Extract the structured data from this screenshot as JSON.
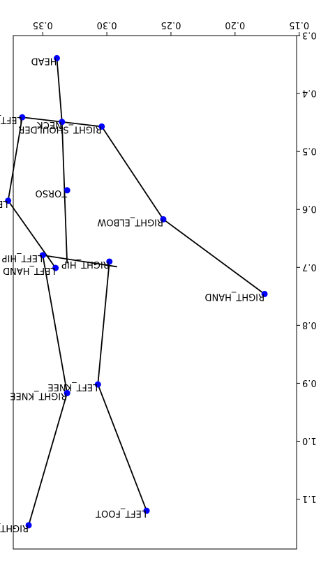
{
  "chart_data": {
    "type": "scatter",
    "title": "",
    "xlabel": "",
    "ylabel": "",
    "x_axis": {
      "range": [
        0.373,
        0.152
      ],
      "inverted": true,
      "ticks": [
        0.35,
        0.3,
        0.25,
        0.2,
        0.15
      ],
      "tick_labels": [
        "0.35",
        "0.30",
        "0.25",
        "0.20",
        "0.15"
      ],
      "position": "top"
    },
    "y_axis": {
      "range": [
        0.3,
        1.186
      ],
      "inverted": true,
      "ticks": [
        0.3,
        0.4,
        0.5,
        0.6,
        0.7,
        0.8,
        0.9,
        1.0,
        1.1
      ],
      "tick_labels": [
        "0.3",
        "0.4",
        "0.5",
        "0.6",
        "0.7",
        "0.8",
        "0.9",
        "1.0",
        "1.1"
      ],
      "position": "right"
    },
    "grid": false,
    "marker_color": "#0000ff",
    "line_color": "#000000",
    "text_orientation": "rotated 180 degrees",
    "points": [
      {
        "name": "HEAD",
        "x": 0.339,
        "y": 0.339
      },
      {
        "name": "NECK",
        "x": 0.335,
        "y": 0.449
      },
      {
        "name": "TORSO",
        "x": 0.331,
        "y": 0.567
      },
      {
        "name": "LEFT_SHOULDER",
        "x": 0.366,
        "y": 0.441
      },
      {
        "name": "RIGHT_SHOULDER",
        "x": 0.304,
        "y": 0.457
      },
      {
        "name": "LEFT_ELBOW",
        "x": 0.377,
        "y": 0.585
      },
      {
        "name": "RIGHT_ELBOW",
        "x": 0.256,
        "y": 0.617
      },
      {
        "name": "LEFT_HAND",
        "x": 0.34,
        "y": 0.701
      },
      {
        "name": "RIGHT_HAND",
        "x": 0.177,
        "y": 0.746
      },
      {
        "name": "LEFT_HIP",
        "x": 0.35,
        "y": 0.679
      },
      {
        "name": "RIGHT_HIP",
        "x": 0.298,
        "y": 0.69
      },
      {
        "name": "LEFT_KNEE",
        "x": 0.307,
        "y": 0.902
      },
      {
        "name": "RIGHT_KNEE",
        "x": 0.331,
        "y": 0.917
      },
      {
        "name": "LEFT_FOOT",
        "x": 0.269,
        "y": 1.12
      },
      {
        "name": "RIGHT_FOOT",
        "x": 0.361,
        "y": 1.145
      }
    ],
    "segments": [
      {
        "from": [
          0.339,
          0.339
        ],
        "to": [
          0.335,
          0.449
        ]
      },
      {
        "from": [
          0.335,
          0.449
        ],
        "to": [
          0.331,
          0.693
        ]
      },
      {
        "from": [
          0.366,
          0.441
        ],
        "to": [
          0.304,
          0.457
        ]
      },
      {
        "from": [
          0.366,
          0.441
        ],
        "to": [
          0.377,
          0.585
        ]
      },
      {
        "from": [
          0.377,
          0.585
        ],
        "to": [
          0.34,
          0.701
        ]
      },
      {
        "from": [
          0.304,
          0.457
        ],
        "to": [
          0.256,
          0.617
        ]
      },
      {
        "from": [
          0.256,
          0.617
        ],
        "to": [
          0.177,
          0.746
        ]
      },
      {
        "from": [
          0.35,
          0.679
        ],
        "to": [
          0.292,
          0.699
        ]
      },
      {
        "from": [
          0.35,
          0.679
        ],
        "to": [
          0.331,
          0.917
        ]
      },
      {
        "from": [
          0.331,
          0.917
        ],
        "to": [
          0.361,
          1.145
        ]
      },
      {
        "from": [
          0.298,
          0.69
        ],
        "to": [
          0.307,
          0.902
        ]
      },
      {
        "from": [
          0.307,
          0.902
        ],
        "to": [
          0.269,
          1.12
        ]
      }
    ]
  }
}
